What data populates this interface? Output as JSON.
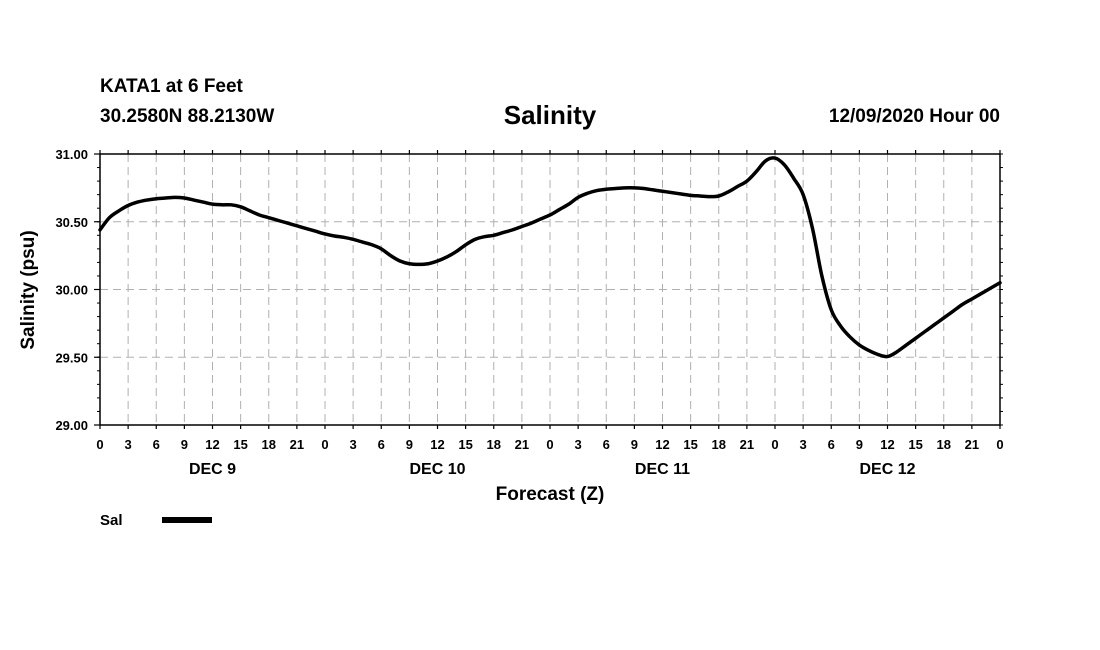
{
  "header": {
    "station": "KATA1 at 6 Feet",
    "coords": "30.2580N 88.2130W",
    "title": "Salinity",
    "datetime": "12/09/2020 Hour 00"
  },
  "chart_data": {
    "type": "line",
    "title": "Salinity",
    "xlabel": "Forecast (Z)",
    "ylabel": "Salinity (psu)",
    "ylim": [
      29.0,
      31.0
    ],
    "yticks": [
      "29.00",
      "29.50",
      "30.00",
      "30.50",
      "31.00"
    ],
    "xlim_hours": [
      0,
      96
    ],
    "xtick_labels": [
      "0",
      "3",
      "6",
      "9",
      "12",
      "15",
      "18",
      "21",
      "0",
      "3",
      "6",
      "9",
      "12",
      "15",
      "18",
      "21",
      "0",
      "3",
      "6",
      "9",
      "12",
      "15",
      "18",
      "21",
      "0",
      "3",
      "6",
      "9",
      "12",
      "15",
      "18",
      "21",
      "0"
    ],
    "day_labels": [
      {
        "label": "DEC 9",
        "hour": 12
      },
      {
        "label": "DEC 10",
        "hour": 36
      },
      {
        "label": "DEC 11",
        "hour": 60
      },
      {
        "label": "DEC 12",
        "hour": 84
      }
    ],
    "grid": true,
    "legend": {
      "placement": "bottom-left"
    },
    "series": [
      {
        "name": "Sal",
        "color": "#000000",
        "x": [
          0,
          1,
          2,
          3,
          4,
          5,
          6,
          7,
          8,
          9,
          10,
          11,
          12,
          13,
          14,
          15,
          16,
          17,
          18,
          19,
          20,
          21,
          22,
          23,
          24,
          25,
          26,
          27,
          28,
          29,
          30,
          31,
          32,
          33,
          34,
          35,
          36,
          37,
          38,
          39,
          40,
          41,
          42,
          43,
          44,
          45,
          46,
          47,
          48,
          49,
          50,
          51,
          52,
          53,
          54,
          55,
          56,
          57,
          58,
          59,
          60,
          61,
          62,
          63,
          64,
          65,
          66,
          67,
          68,
          69,
          70,
          71,
          72,
          73,
          74,
          75,
          76,
          77,
          78,
          79,
          80,
          81,
          82,
          83,
          84,
          85,
          86,
          87,
          88,
          89,
          90,
          91,
          92,
          93,
          94,
          95,
          96
        ],
        "values": [
          30.44,
          30.53,
          30.58,
          30.62,
          30.645,
          30.66,
          30.67,
          30.675,
          30.68,
          30.675,
          30.66,
          30.645,
          30.63,
          30.625,
          30.625,
          30.61,
          30.58,
          30.55,
          30.53,
          30.51,
          30.49,
          30.47,
          30.45,
          30.43,
          30.41,
          30.395,
          30.385,
          30.37,
          30.35,
          30.33,
          30.3,
          30.25,
          30.21,
          30.19,
          30.185,
          30.19,
          30.21,
          30.24,
          30.28,
          30.33,
          30.37,
          30.39,
          30.4,
          30.42,
          30.44,
          30.465,
          30.49,
          30.52,
          30.55,
          30.59,
          30.63,
          30.68,
          30.71,
          30.73,
          30.74,
          30.745,
          30.75,
          30.75,
          30.745,
          30.735,
          30.725,
          30.715,
          30.705,
          30.695,
          30.69,
          30.685,
          30.69,
          30.72,
          30.76,
          30.8,
          30.87,
          30.95,
          30.97,
          30.92,
          30.82,
          30.7,
          30.45,
          30.1,
          29.85,
          29.73,
          29.65,
          29.59,
          29.55,
          29.52,
          29.505,
          29.54,
          29.59,
          29.64,
          29.69,
          29.74,
          29.79,
          29.84,
          29.89,
          29.93,
          29.97,
          30.01,
          30.05
        ]
      }
    ]
  }
}
